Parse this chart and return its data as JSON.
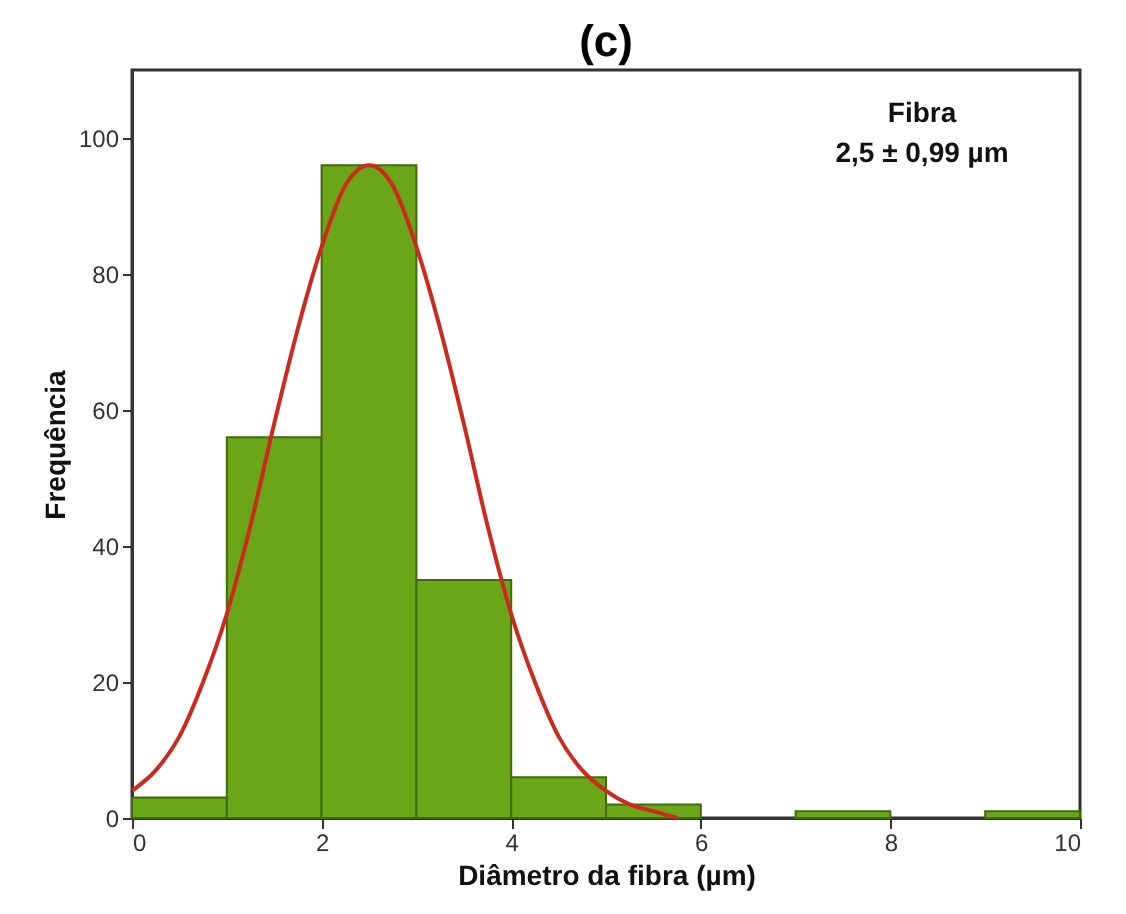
{
  "chart_data": {
    "type": "histogram",
    "title": "(c)",
    "xlabel": "Diâmetro da fibra (µm)",
    "ylabel": "Frequência",
    "annotations": [
      "Fibra",
      "2,5 ± 0,99 µm"
    ],
    "bins": [
      0,
      1,
      2,
      3,
      4,
      5,
      6,
      7,
      8,
      9,
      10
    ],
    "values": [
      3,
      56,
      96,
      35,
      6,
      2,
      0,
      1,
      0,
      1
    ],
    "color": "#6aa617",
    "series": [
      {
        "type": "line",
        "color": "#cc2a1f",
        "x": [
          0,
          0.25,
          0.5,
          0.75,
          1,
          1.25,
          1.5,
          1.75,
          2,
          2.25,
          2.5,
          2.75,
          3,
          3.25,
          3.5,
          3.75,
          4,
          4.25,
          4.5,
          4.75,
          5,
          5.25,
          5.5,
          5.75
        ],
        "values": [
          4,
          7,
          12,
          20,
          30,
          43,
          58,
          72,
          84,
          93,
          96,
          93,
          84,
          72,
          58,
          43,
          30,
          20,
          12,
          7,
          4,
          2,
          1,
          0
        ]
      }
    ],
    "xlim": [
      0,
      10
    ],
    "xticks": [
      0,
      2,
      4,
      6,
      8,
      10
    ],
    "ylim": [
      0,
      110
    ],
    "yticks": [
      0,
      20,
      40,
      60,
      80,
      100
    ],
    "grid": false
  }
}
